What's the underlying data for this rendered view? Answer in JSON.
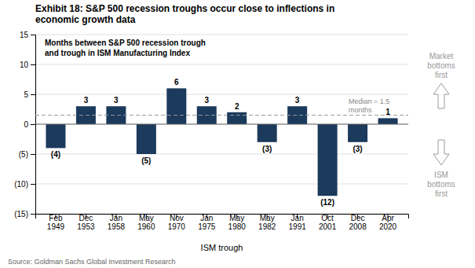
{
  "chart_data": {
    "type": "bar",
    "title": "Exhibit 18: S&P 500 recession troughs occur close to inflections in\neconomic growth data",
    "subtitle": "Months between S&P 500 recession trough\nand trough in ISM Manufacturing Index",
    "xlabel": "ISM trough",
    "source": "Source: Goldman Sachs Global Investment Research",
    "categories": [
      "Feb\n1949",
      "Dec\n1953",
      "Jan\n1958",
      "May\n1960",
      "Nov\n1970",
      "Jan\n1975",
      "May\n1980",
      "May\n1982",
      "Jan\n1991",
      "Oct\n2001",
      "Dec\n2008",
      "Apr\n2020"
    ],
    "values": [
      -4,
      3,
      3,
      -5,
      6,
      3,
      2,
      -3,
      3,
      -12,
      -3,
      1
    ],
    "value_labels": [
      "(4)",
      "3",
      "3",
      "(5)",
      "6",
      "3",
      "2",
      "(3)",
      "3",
      "(12)",
      "(3)",
      "1"
    ],
    "data_labels": true,
    "color": "#1b3a5c",
    "ylim": [
      -15,
      15
    ],
    "yticks": [
      {
        "value": -15,
        "label": "(15)"
      },
      {
        "value": -10,
        "label": "(10)"
      },
      {
        "value": -5,
        "label": "(5)"
      },
      0,
      5,
      10,
      15
    ],
    "grid": true,
    "median": {
      "value": 1.5,
      "label": "Median = 1.5\nmonths"
    },
    "annotations": [
      {
        "text": "Market\nbottoms\nfirst",
        "color": "#999999"
      },
      {
        "text": "ISM\nbottoms\nfirst",
        "color": "#999999"
      }
    ]
  }
}
